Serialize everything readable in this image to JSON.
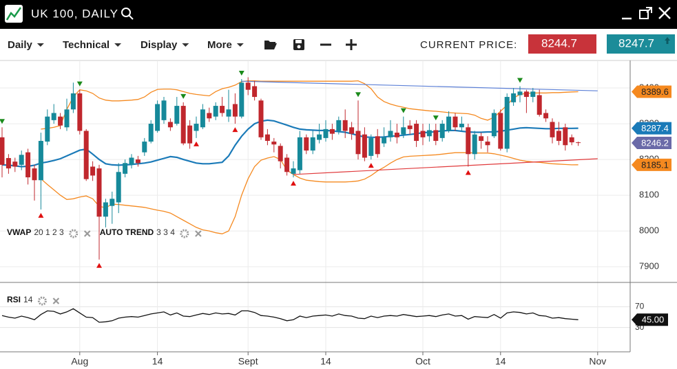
{
  "header": {
    "title": "UK 100, DAILY"
  },
  "toolbar": {
    "menus": [
      "Daily",
      "Technical",
      "Display",
      "More"
    ],
    "current_price_label": "CURRENT PRICE:",
    "bid": "8244.7",
    "ask": "8247.7"
  },
  "chart_data": [
    {
      "type": "candlestick",
      "categories": [
        null,
        null,
        null,
        null,
        null,
        null,
        null,
        null,
        null,
        null,
        null,
        null,
        "Aug",
        null,
        null,
        null,
        null,
        null,
        null,
        null,
        null,
        null,
        null,
        null,
        "14",
        null,
        null,
        null,
        null,
        null,
        null,
        null,
        null,
        null,
        null,
        null,
        null,
        null,
        "Sept",
        null,
        null,
        null,
        null,
        null,
        null,
        null,
        null,
        null,
        null,
        null,
        "14",
        null,
        null,
        null,
        null,
        null,
        null,
        null,
        null,
        null,
        null,
        null,
        null,
        null,
        null,
        "Oct",
        null,
        null,
        null,
        null,
        null,
        null,
        null,
        null,
        null,
        null,
        null,
        "14",
        null,
        null,
        null,
        null,
        null,
        null,
        null,
        null,
        null,
        null,
        null,
        null,
        null,
        null,
        "Nov"
      ],
      "open": [
        8262,
        8204,
        8194,
        8185,
        8220,
        8175,
        8142,
        8250,
        8310,
        8320,
        8290,
        8340,
        8385,
        8280,
        8180,
        8175,
        8040,
        8070,
        8080,
        8160,
        8185,
        8200,
        8220,
        8250,
        8280,
        8310,
        8305,
        8300,
        8350,
        8295,
        8280,
        8290,
        8330,
        8320,
        8350,
        8320,
        8355,
        8320,
        8415,
        8405,
        8365,
        8270,
        8250,
        8238,
        8205,
        8160,
        8170,
        8262,
        8225,
        8255,
        8260,
        8285,
        8280,
        8310,
        8290,
        8280,
        8270,
        8210,
        8265,
        8245,
        8262,
        8275,
        8270,
        8295,
        8300,
        8280,
        8265,
        8282,
        8260,
        8280,
        8320,
        8290,
        8290,
        8215,
        8265,
        8250,
        8265,
        8330,
        8230,
        8360,
        8380,
        8390,
        8375,
        8380,
        8330,
        8305,
        8280,
        8290,
        8262,
        8248,
        null,
        null,
        null
      ],
      "high": [
        8290,
        8215,
        8205,
        8225,
        8230,
        8185,
        8275,
        8340,
        8355,
        8330,
        8370,
        8415,
        8395,
        8285,
        8195,
        8185,
        8090,
        8110,
        8190,
        8200,
        8215,
        8210,
        8260,
        8310,
        8365,
        8375,
        8315,
        8375,
        8360,
        8310,
        8320,
        8355,
        8345,
        8360,
        8375,
        8395,
        8385,
        8425,
        8430,
        8420,
        8370,
        8285,
        8260,
        8245,
        8215,
        8195,
        8280,
        8270,
        8280,
        8300,
        8310,
        8300,
        8320,
        8340,
        8305,
        8365,
        8290,
        8270,
        8285,
        8290,
        8310,
        8300,
        8320,
        8310,
        8310,
        8300,
        8300,
        8300,
        8310,
        8335,
        8330,
        8320,
        8300,
        8280,
        8275,
        8265,
        8340,
        8340,
        8385,
        8400,
        8405,
        8395,
        8400,
        8395,
        8340,
        8315,
        8305,
        8300,
        8270,
        8250,
        null,
        null,
        null
      ],
      "low": [
        8150,
        8160,
        8165,
        8170,
        8130,
        8085,
        8060,
        8240,
        8300,
        8285,
        8280,
        8330,
        8270,
        8140,
        8140,
        7920,
        8010,
        8020,
        8050,
        8150,
        8175,
        8180,
        8210,
        8245,
        8275,
        8300,
        8280,
        8295,
        8240,
        8230,
        8260,
        8285,
        8305,
        8310,
        8320,
        8305,
        8300,
        8315,
        8380,
        8365,
        8255,
        8240,
        8220,
        8175,
        8155,
        8150,
        8160,
        8215,
        8215,
        8245,
        8250,
        8255,
        8270,
        8260,
        8255,
        8200,
        8195,
        8200,
        8205,
        8235,
        8250,
        8245,
        8260,
        8270,
        8235,
        8240,
        8250,
        8240,
        8250,
        8275,
        8280,
        8280,
        8180,
        8200,
        8230,
        8220,
        8260,
        8225,
        8220,
        8350,
        8360,
        8330,
        8360,
        8320,
        8305,
        8245,
        8240,
        8225,
        8240,
        8238,
        null,
        null,
        null
      ],
      "close": [
        8185,
        8175,
        8180,
        8213,
        8150,
        8142,
        8252,
        8320,
        8330,
        8295,
        8340,
        8385,
        8280,
        8145,
        8155,
        8040,
        8080,
        8090,
        8165,
        8190,
        8205,
        8190,
        8250,
        8300,
        8355,
        8365,
        8290,
        8350,
        8245,
        8245,
        8300,
        8340,
        8315,
        8350,
        8330,
        8340,
        8320,
        8415,
        8395,
        8375,
        8262,
        8252,
        8242,
        8195,
        8165,
        8175,
        8262,
        8225,
        8262,
        8270,
        8285,
        8272,
        8310,
        8280,
        8272,
        8215,
        8205,
        8260,
        8215,
        8262,
        8280,
        8262,
        8290,
        8285,
        8252,
        8262,
        8282,
        8252,
        8300,
        8320,
        8290,
        8300,
        8215,
        8270,
        8252,
        8240,
        8330,
        8230,
        8375,
        8385,
        8390,
        8375,
        8390,
        8325,
        8315,
        8262,
        8252,
        8240,
        8248,
        8246.2,
        null,
        null,
        null
      ],
      "up_color": "#16899a",
      "down_color": "#c0272d",
      "ylim": [
        7856,
        8477
      ],
      "yticks": [
        7900,
        8000,
        8100,
        8200,
        8300,
        8400
      ],
      "grid": true,
      "series": [
        {
          "color": "#1a7ab8",
          "values": [
            8185,
            8184,
            8182,
            8180,
            8181,
            8184,
            8190,
            8193,
            8197,
            8202,
            8210,
            8218,
            8226,
            8229,
            8215,
            8200,
            8188,
            8185,
            8184,
            8185,
            8186,
            8188,
            8190,
            8193,
            8198,
            8203,
            8208,
            8206,
            8200,
            8195,
            8190,
            8188,
            8188,
            8190,
            8192,
            8210,
            8240,
            8265,
            8285,
            8300,
            8307,
            8310,
            8308,
            8302,
            8296,
            8290,
            8285,
            8283,
            8282,
            8281,
            8281,
            8280,
            8278,
            8276,
            8272,
            8267,
            8263,
            8262,
            8262,
            8263,
            8265,
            8266,
            8268,
            8270,
            8272,
            8275,
            8276,
            8278,
            8280,
            8281,
            8281,
            8279,
            8277,
            8276,
            8276,
            8277,
            8277,
            8279,
            8282,
            8285,
            8288,
            8289,
            8288,
            8287,
            8286,
            8286,
            8287,
            8287,
            8287,
            8287.4,
            null,
            null,
            null
          ]
        },
        {
          "color": "#f5891f",
          "values": [
            null,
            null,
            null,
            null,
            null,
            null,
            8285,
            8287,
            8290,
            8295,
            8340,
            8375,
            8395,
            8392,
            8385,
            8372,
            8366,
            8364,
            8364,
            8365,
            8366,
            8368,
            8375,
            8388,
            8396,
            8397,
            8397,
            8395,
            8390,
            8385,
            8382,
            8380,
            8378,
            8390,
            8398,
            8402,
            8408,
            8418,
            8420,
            8420,
            8419,
            8419,
            8419,
            8419,
            8419,
            8419,
            8419,
            8419,
            8419,
            8419,
            8419,
            8419,
            8419,
            8419,
            8419,
            8420,
            8412,
            8398,
            8375,
            8362,
            8355,
            8350,
            8346,
            8342,
            8340,
            8338,
            8336,
            8335,
            8333,
            8331,
            8330,
            8329,
            8328,
            8324,
            8315,
            8310,
            8318,
            8335,
            8352,
            8372,
            8382,
            8385,
            8386,
            8386,
            8386,
            8387,
            8387,
            8388,
            8389,
            8389.6,
            null,
            null,
            null
          ]
        },
        {
          "color": "#f5891f",
          "values": [
            null,
            null,
            null,
            null,
            null,
            null,
            8146,
            8130,
            8115,
            8100,
            8088,
            8090,
            8095,
            8098,
            8090,
            8069,
            8065,
            8075,
            8074,
            8072,
            8070,
            8068,
            8066,
            8062,
            8058,
            8055,
            8050,
            8040,
            8030,
            8020,
            8010,
            8003,
            8000,
            7995,
            7992,
            8000,
            8040,
            8100,
            8146,
            8180,
            8198,
            8204,
            8208,
            8200,
            8170,
            8158,
            8148,
            8142,
            8140,
            8138,
            8137,
            8137,
            8137,
            8137,
            8138,
            8140,
            8145,
            8155,
            8168,
            8178,
            8190,
            8200,
            8207,
            8209,
            8210,
            8211,
            8212,
            8213,
            8215,
            8217,
            8219,
            8219,
            8219,
            8218,
            8218,
            8218,
            8216,
            8212,
            8208,
            8203,
            8198,
            8195,
            8193,
            8192,
            8190,
            8188,
            8187,
            8186,
            8185,
            8185.1,
            null,
            null,
            null
          ]
        }
      ],
      "indicators": [
        {
          "name": "VWAP",
          "params": "20 1 2 3"
        },
        {
          "name": "AUTO TREND",
          "params": "3 3 4"
        }
      ],
      "trendlines": [
        {
          "color": "#5b7fd6",
          "points": [
            [
              37,
              8419
            ],
            [
              92,
              8392
            ]
          ]
        },
        {
          "color": "#e0383a",
          "points": [
            [
              45,
              8158
            ],
            [
              92,
              8202
            ]
          ]
        }
      ],
      "sell_signals": [
        0,
        12,
        28,
        37,
        55,
        62,
        67,
        80
      ],
      "sell_color": "#1a8a1a",
      "buy_signals": [
        6,
        15,
        30,
        36,
        45,
        57,
        72
      ],
      "buy_color": "#e01010",
      "price_tags": [
        {
          "value": 8389.6,
          "color": "#f5891f",
          "text_color": "#222"
        },
        {
          "value": 8287.4,
          "color": "#1a7ab8",
          "text_color": "#fff"
        },
        {
          "value": 8246.2,
          "color": "#6a6aa8",
          "text_color": "#fff"
        },
        {
          "value": 8185.1,
          "color": "#f5891f",
          "text_color": "#222"
        }
      ]
    },
    {
      "type": "line",
      "indicator": {
        "name": "RSI",
        "params": "14"
      },
      "color": "#111",
      "values": [
        53,
        50,
        48,
        52,
        49,
        45,
        55,
        62,
        61,
        56,
        60,
        66,
        58,
        50,
        49,
        40,
        41,
        43,
        48,
        50,
        51,
        50,
        53,
        56,
        58,
        60,
        54,
        58,
        52,
        51,
        54,
        57,
        55,
        58,
        56,
        57,
        54,
        62,
        62,
        59,
        53,
        52,
        50,
        47,
        43,
        45,
        52,
        49,
        52,
        53,
        54,
        52,
        56,
        53,
        52,
        48,
        47,
        52,
        49,
        52,
        53,
        52,
        55,
        53,
        51,
        52,
        53,
        51,
        54,
        56,
        52,
        53,
        46,
        51,
        50,
        49,
        55,
        48,
        58,
        60,
        59,
        56,
        58,
        53,
        52,
        48,
        49,
        47,
        46,
        45,
        null,
        null,
        null
      ],
      "ylim": [
        -16.7,
        115.3
      ],
      "yticks": [
        30,
        70
      ],
      "grid": true,
      "tag": {
        "value": 45,
        "label": "45.00",
        "color": "#111",
        "text_color": "#fff"
      }
    }
  ]
}
